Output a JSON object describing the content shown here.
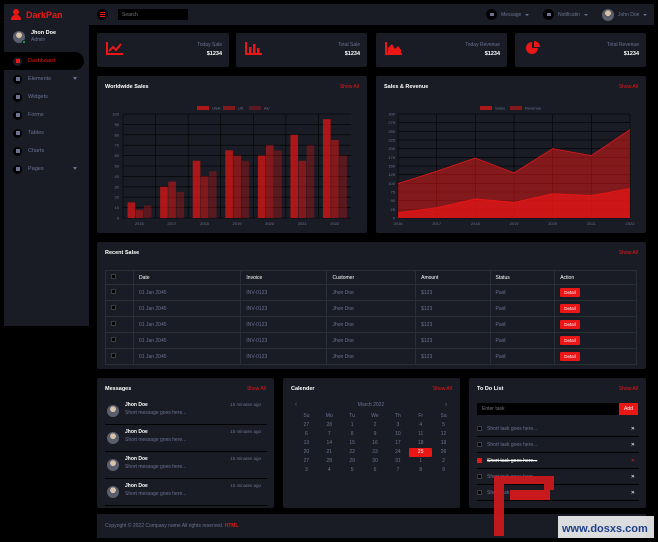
{
  "brand": {
    "name": "DarkPan"
  },
  "user": {
    "name": "Jhon Doe",
    "role": "Admin"
  },
  "nav": [
    {
      "label": "Dashboard",
      "icon": "tachometer-icon",
      "active": true
    },
    {
      "label": "Elements",
      "icon": "laptop-icon",
      "dropdown": true
    },
    {
      "label": "Widgets",
      "icon": "th-icon"
    },
    {
      "label": "Forms",
      "icon": "keyboard-icon"
    },
    {
      "label": "Tables",
      "icon": "table-icon"
    },
    {
      "label": "Charts",
      "icon": "chart-bar-icon"
    },
    {
      "label": "Pages",
      "icon": "file-icon",
      "dropdown": true
    }
  ],
  "topbar": {
    "search_placeholder": "Search",
    "message_label": "Message",
    "notification_label": "Notificatin",
    "user_name": "John Doe"
  },
  "stats": [
    {
      "label": "Today Sale",
      "value": "$1234",
      "icon": "chart-line-icon"
    },
    {
      "label": "Total Sale",
      "value": "$1234",
      "icon": "chart-bar-icon"
    },
    {
      "label": "Today Revenue",
      "value": "$1234",
      "icon": "chart-area-icon"
    },
    {
      "label": "Total Revenue",
      "value": "$1234",
      "icon": "chart-pie-icon"
    }
  ],
  "worldwide": {
    "title": "Worldwide Sales",
    "show_all": "Show All"
  },
  "salesrev": {
    "title": "Sales & Revenue",
    "show_all": "Show All"
  },
  "chart_data": [
    {
      "type": "bar",
      "title": "Worldwide Sales",
      "categories": [
        "2016",
        "2017",
        "2018",
        "2019",
        "2020",
        "2021",
        "2022"
      ],
      "series": [
        {
          "name": "USA",
          "values": [
            15,
            30,
            55,
            65,
            60,
            80,
            95
          ]
        },
        {
          "name": "UK",
          "values": [
            8,
            35,
            40,
            60,
            70,
            55,
            75
          ]
        },
        {
          "name": "AU",
          "values": [
            12,
            25,
            45,
            55,
            65,
            70,
            60
          ]
        }
      ],
      "ylim": [
        0,
        100
      ],
      "yticks": [
        "0",
        "10",
        "20",
        "30",
        "40",
        "50",
        "60",
        "70",
        "80",
        "90",
        "100"
      ],
      "legend": "top-center"
    },
    {
      "type": "area",
      "title": "Sales & Revenue",
      "x": [
        "2016",
        "2017",
        "2018",
        "2019",
        "2020",
        "2021",
        "2022"
      ],
      "series": [
        {
          "name": "Sales",
          "values": [
            15,
            30,
            55,
            45,
            70,
            65,
            85
          ]
        },
        {
          "name": "Revenue",
          "values": [
            99,
            135,
            173,
            130,
            200,
            180,
            255
          ]
        }
      ],
      "ylim": [
        0,
        300
      ],
      "yticks": [
        "0",
        "25",
        "50",
        "75",
        "100",
        "125",
        "150",
        "175",
        "200",
        "225",
        "250",
        "275",
        "300"
      ],
      "legend": "top-center"
    }
  ],
  "recent_sales": {
    "title": "Recent Salse",
    "show_all": "Show All",
    "headers": [
      "Date",
      "Invoice",
      "Customer",
      "Amount",
      "Status",
      "Action"
    ],
    "rows": [
      {
        "date": "01 Jan 2045",
        "invoice": "INV-0123",
        "customer": "Jhon Doe",
        "amount": "$123",
        "status": "Paid",
        "action": "Detail"
      },
      {
        "date": "01 Jan 2045",
        "invoice": "INV-0123",
        "customer": "Jhon Doe",
        "amount": "$123",
        "status": "Paid",
        "action": "Detail"
      },
      {
        "date": "01 Jan 2045",
        "invoice": "INV-0123",
        "customer": "Jhon Doe",
        "amount": "$123",
        "status": "Paid",
        "action": "Detail"
      },
      {
        "date": "01 Jan 2045",
        "invoice": "INV-0123",
        "customer": "Jhon Doe",
        "amount": "$123",
        "status": "Paid",
        "action": "Detail"
      },
      {
        "date": "01 Jan 2045",
        "invoice": "INV-0123",
        "customer": "Jhon Doe",
        "amount": "$123",
        "status": "Paid",
        "action": "Detail"
      }
    ]
  },
  "messages": {
    "title": "Messages",
    "show_all": "Show All",
    "items": [
      {
        "name": "Jhon Doe",
        "time": "15 minutes ago",
        "text": "Short message goes here..."
      },
      {
        "name": "Jhon Doe",
        "time": "15 minutes ago",
        "text": "Short message goes here..."
      },
      {
        "name": "Jhon Doe",
        "time": "15 minutes ago",
        "text": "Short message goes here..."
      },
      {
        "name": "Jhon Doe",
        "time": "15 minutes ago",
        "text": "Short message goes here..."
      }
    ]
  },
  "calendar": {
    "title": "Calender",
    "show_all": "Show All",
    "month": "March 2022",
    "weekdays": [
      "Su",
      "Mo",
      "Tu",
      "We",
      "Th",
      "Fr",
      "Sa"
    ],
    "days": [
      "27",
      "28",
      "1",
      "2",
      "3",
      "4",
      "5",
      "6",
      "7",
      "8",
      "9",
      "10",
      "11",
      "12",
      "13",
      "14",
      "15",
      "16",
      "17",
      "18",
      "19",
      "20",
      "21",
      "22",
      "23",
      "24",
      "25",
      "26",
      "27",
      "28",
      "29",
      "30",
      "31",
      "1",
      "2",
      "3",
      "4",
      "5",
      "6",
      "7",
      "8",
      "9"
    ],
    "selected": "25"
  },
  "todo": {
    "title": "To Do List",
    "show_all": "Show All",
    "input_placeholder": "Enter task",
    "add_label": "Add",
    "items": [
      {
        "text": "Short task goes here...",
        "done": false
      },
      {
        "text": "Short task goes here...",
        "done": false
      },
      {
        "text": "Short task goes here...",
        "done": true
      },
      {
        "text": "Short task goes here...",
        "done": false
      },
      {
        "text": "Short task goes here...",
        "done": false
      }
    ]
  },
  "footer": {
    "text": "Copyright © 2022 Company name All rights reserved.",
    "credit": "HTML"
  },
  "watermark": {
    "text": "www.dosxs.com"
  },
  "colors": {
    "accent": "#EB1616",
    "card": "#191C24",
    "bg": "#000000",
    "muted": "#6C7293"
  }
}
